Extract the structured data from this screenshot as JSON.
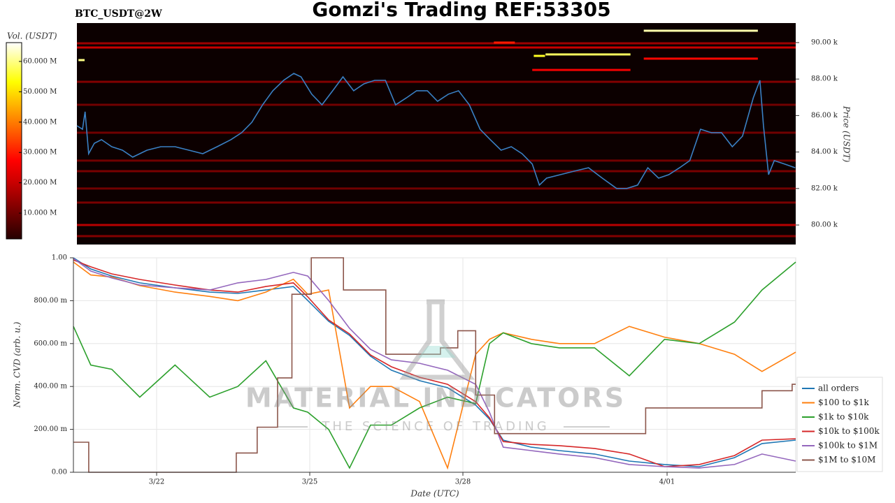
{
  "chart_data": [
    {
      "type": "heatmap",
      "title": "Gomzi's Trading REF:53305",
      "subtitle": "BTC_USDT@2W",
      "y_label": "Price (USDT)",
      "colorbar_label": "Vol. (USDT)",
      "xlim": [
        20.44,
        34.49
      ],
      "ylim": [
        78930,
        91070
      ],
      "yticks": [
        {
          "value": 80000,
          "label": "80.00 k"
        },
        {
          "value": 82000,
          "label": "82.00 k"
        },
        {
          "value": 84000,
          "label": "84.00 k"
        },
        {
          "value": 86000,
          "label": "86.00 k"
        },
        {
          "value": 88000,
          "label": "88.00 k"
        },
        {
          "value": 90000,
          "label": "90.00 k"
        }
      ],
      "clim": [
        1500000,
        66200000
      ],
      "cticks": [
        {
          "value": 10000000,
          "label": "10.000 M"
        },
        {
          "value": 20000000,
          "label": "20.000 M"
        },
        {
          "value": 30000000,
          "label": "30.000 M"
        },
        {
          "value": 40000000,
          "label": "40.000 M"
        },
        {
          "value": 50000000,
          "label": "50.000 M"
        },
        {
          "value": 60000000,
          "label": "60.000 M"
        }
      ],
      "levels": [
        {
          "start": 20.44,
          "end": 34.49,
          "price": 89960,
          "volume": 15000000
        },
        {
          "start": 20.44,
          "end": 34.49,
          "price": 89730,
          "volume": 20000000
        },
        {
          "start": 31.52,
          "end": 33.75,
          "price": 90650,
          "volume": 62000000
        },
        {
          "start": 29.6,
          "end": 31.26,
          "price": 89350,
          "volume": 58000000
        },
        {
          "start": 29.37,
          "end": 29.59,
          "price": 89270,
          "volume": 55000000
        },
        {
          "start": 20.47,
          "end": 20.59,
          "price": 89040,
          "volume": 60000000
        },
        {
          "start": 31.52,
          "end": 33.75,
          "price": 89120,
          "volume": 28000000
        },
        {
          "start": 28.59,
          "end": 29.0,
          "price": 90000,
          "volume": 30000000
        },
        {
          "start": 29.34,
          "end": 31.26,
          "price": 88500,
          "volume": 25000000
        },
        {
          "start": 20.44,
          "end": 34.49,
          "price": 87850,
          "volume": 12000000
        },
        {
          "start": 20.44,
          "end": 34.49,
          "price": 86590,
          "volume": 10000000
        },
        {
          "start": 20.44,
          "end": 34.49,
          "price": 85060,
          "volume": 10000000
        },
        {
          "start": 20.44,
          "end": 34.49,
          "price": 83530,
          "volume": 10000000
        },
        {
          "start": 20.44,
          "end": 34.49,
          "price": 82950,
          "volume": 11000000
        },
        {
          "start": 20.44,
          "end": 34.49,
          "price": 82000,
          "volume": 10000000
        },
        {
          "start": 20.44,
          "end": 34.49,
          "price": 81230,
          "volume": 11000000
        },
        {
          "start": 20.44,
          "end": 34.49,
          "price": 80000,
          "volume": 18000000
        },
        {
          "start": 20.44,
          "end": 34.49,
          "price": 79390,
          "volume": 12000000
        }
      ],
      "line": {
        "color": "#3a80c4",
        "x": [
          20.44,
          20.55,
          20.6,
          20.67,
          20.78,
          20.92,
          21.12,
          21.33,
          21.53,
          21.81,
          22.08,
          22.36,
          22.63,
          22.9,
          23.18,
          23.45,
          23.66,
          23.86,
          24.07,
          24.27,
          24.48,
          24.68,
          24.82,
          25.03,
          25.23,
          25.44,
          25.64,
          25.85,
          26.05,
          26.26,
          26.47,
          26.67,
          26.88,
          27.08,
          27.29,
          27.49,
          27.7,
          27.9,
          28.11,
          28.32,
          28.52,
          28.73,
          28.93,
          29.14,
          29.34,
          29.48,
          29.62,
          29.89,
          30.16,
          30.44,
          30.71,
          30.99,
          31.19,
          31.4,
          31.6,
          31.81,
          32.01,
          32.22,
          32.42,
          32.63,
          32.84,
          33.04,
          33.25,
          33.45,
          33.66,
          33.79,
          33.86,
          33.96,
          34.07,
          34.27,
          34.48
        ],
        "values": [
          85440,
          85250,
          86210,
          83910,
          84480,
          84680,
          84290,
          84100,
          83720,
          84100,
          84290,
          84290,
          84100,
          83910,
          84290,
          84680,
          85060,
          85630,
          86590,
          87360,
          87930,
          88310,
          88120,
          87170,
          86590,
          87360,
          88120,
          87360,
          87740,
          87930,
          87930,
          86590,
          86970,
          87360,
          87360,
          86780,
          87170,
          87360,
          86590,
          85250,
          84680,
          84100,
          84290,
          83910,
          83340,
          82190,
          82570,
          82760,
          82950,
          83140,
          82570,
          82000,
          82000,
          82190,
          83140,
          82570,
          82760,
          83140,
          83530,
          85250,
          85060,
          85060,
          84290,
          84870,
          86970,
          87930,
          85440,
          82760,
          83530,
          83340,
          83140
        ]
      }
    },
    {
      "type": "line",
      "x_label": "Date (UTC)",
      "y_label": "Norm. CVD (arb. u.)",
      "xlim": [
        20.37,
        34.52
      ],
      "ylim": [
        0,
        1
      ],
      "xticks": [
        {
          "value": 22,
          "label": "3/22"
        },
        {
          "value": 25,
          "label": "3/25"
        },
        {
          "value": 28,
          "label": "3/28"
        },
        {
          "value": 32,
          "label": "4/01"
        }
      ],
      "yticks": [
        {
          "value": 0,
          "label": "0.00"
        },
        {
          "value": 0.2,
          "label": "200.00 m"
        },
        {
          "value": 0.4,
          "label": "400.00 m"
        },
        {
          "value": 0.6,
          "label": "600.00 m"
        },
        {
          "value": 0.8,
          "label": "800.00 m"
        },
        {
          "value": 1,
          "label": "1.00"
        }
      ],
      "grid": true,
      "legend": "lower right",
      "watermark": {
        "title": "MATERIAL INDICATORS",
        "subtitle": "THE SCIENCE OF TRADING"
      },
      "series": [
        {
          "name": "all orders",
          "color": "#1f77b4",
          "x": [
            20.37,
            20.71,
            21.12,
            21.67,
            22.36,
            23.04,
            23.59,
            24.14,
            24.68,
            24.96,
            25.37,
            25.78,
            26.19,
            26.6,
            27.15,
            27.7,
            28.25,
            28.52,
            28.79,
            29.34,
            29.89,
            30.58,
            31.26,
            31.95,
            32.63,
            33.32,
            33.86,
            34.52
          ],
          "values": [
            1.0,
            0.948,
            0.915,
            0.883,
            0.86,
            0.84,
            0.834,
            0.85,
            0.866,
            0.801,
            0.704,
            0.638,
            0.541,
            0.476,
            0.427,
            0.394,
            0.313,
            0.248,
            0.15,
            0.117,
            0.101,
            0.085,
            0.052,
            0.036,
            0.026,
            0.068,
            0.134,
            0.15
          ]
        },
        {
          "name": "$100 to $1k",
          "color": "#ff7f0e",
          "x": [
            20.37,
            20.71,
            21.12,
            21.67,
            22.36,
            23.04,
            23.59,
            24.14,
            24.68,
            24.96,
            25.37,
            25.78,
            26.19,
            26.6,
            27.15,
            27.7,
            28.25,
            28.52,
            28.79,
            29.34,
            29.89,
            30.58,
            31.26,
            31.95,
            32.63,
            33.32,
            33.86,
            34.52
          ],
          "values": [
            0.98,
            0.92,
            0.91,
            0.87,
            0.84,
            0.82,
            0.8,
            0.84,
            0.9,
            0.83,
            0.85,
            0.3,
            0.4,
            0.4,
            0.33,
            0.02,
            0.55,
            0.62,
            0.65,
            0.62,
            0.6,
            0.6,
            0.68,
            0.63,
            0.6,
            0.55,
            0.47,
            0.56
          ]
        },
        {
          "name": "$1k to $10k",
          "color": "#2ca02c",
          "x": [
            20.37,
            20.71,
            21.12,
            21.67,
            22.36,
            23.04,
            23.59,
            24.14,
            24.68,
            24.96,
            25.37,
            25.78,
            26.19,
            26.6,
            27.15,
            27.7,
            28.25,
            28.52,
            28.79,
            29.34,
            29.89,
            30.58,
            31.26,
            31.95,
            32.63,
            33.32,
            33.86,
            34.52
          ],
          "values": [
            0.68,
            0.5,
            0.48,
            0.35,
            0.5,
            0.35,
            0.4,
            0.52,
            0.3,
            0.28,
            0.2,
            0.02,
            0.22,
            0.22,
            0.3,
            0.35,
            0.32,
            0.6,
            0.65,
            0.6,
            0.58,
            0.58,
            0.45,
            0.62,
            0.6,
            0.7,
            0.85,
            0.98
          ]
        },
        {
          "name": "$10k to $100k",
          "color": "#d62728",
          "x": [
            20.37,
            20.71,
            21.12,
            21.67,
            22.36,
            23.04,
            23.59,
            24.14,
            24.68,
            24.96,
            25.37,
            25.78,
            26.19,
            26.6,
            27.15,
            27.7,
            28.25,
            28.52,
            28.79,
            29.34,
            29.89,
            30.58,
            31.26,
            31.95,
            32.63,
            33.32,
            33.86,
            34.52
          ],
          "values": [
            0.99,
            0.958,
            0.925,
            0.899,
            0.873,
            0.85,
            0.84,
            0.866,
            0.883,
            0.818,
            0.71,
            0.645,
            0.547,
            0.492,
            0.443,
            0.41,
            0.329,
            0.254,
            0.143,
            0.13,
            0.124,
            0.111,
            0.085,
            0.026,
            0.036,
            0.078,
            0.15,
            0.156
          ]
        },
        {
          "name": "$100k to $1M",
          "color": "#9467bd",
          "x": [
            20.37,
            20.71,
            21.12,
            21.67,
            22.36,
            23.04,
            23.59,
            24.14,
            24.68,
            24.96,
            25.37,
            25.78,
            26.19,
            26.6,
            27.15,
            27.7,
            28.25,
            28.52,
            28.79,
            29.34,
            29.89,
            30.58,
            31.26,
            31.95,
            32.63,
            33.32,
            33.86,
            34.52
          ],
          "values": [
            0.997,
            0.938,
            0.906,
            0.873,
            0.86,
            0.85,
            0.883,
            0.899,
            0.932,
            0.915,
            0.801,
            0.671,
            0.573,
            0.524,
            0.508,
            0.476,
            0.41,
            0.28,
            0.117,
            0.101,
            0.085,
            0.068,
            0.036,
            0.026,
            0.02,
            0.036,
            0.085,
            0.052
          ]
        },
        {
          "name": "$1M to $10M",
          "color": "#8c564b",
          "step": "post",
          "x": [
            20.37,
            20.67,
            23.56,
            23.97,
            24.37,
            24.65,
            25.03,
            25.66,
            26.49,
            27.56,
            27.9,
            28.25,
            28.62,
            31.58,
            33.86,
            34.45
          ],
          "values": [
            0.14,
            0.0,
            0.09,
            0.21,
            0.44,
            0.83,
            1.0,
            0.85,
            0.55,
            0.58,
            0.66,
            0.36,
            0.18,
            0.3,
            0.38,
            0.41
          ]
        }
      ]
    }
  ]
}
